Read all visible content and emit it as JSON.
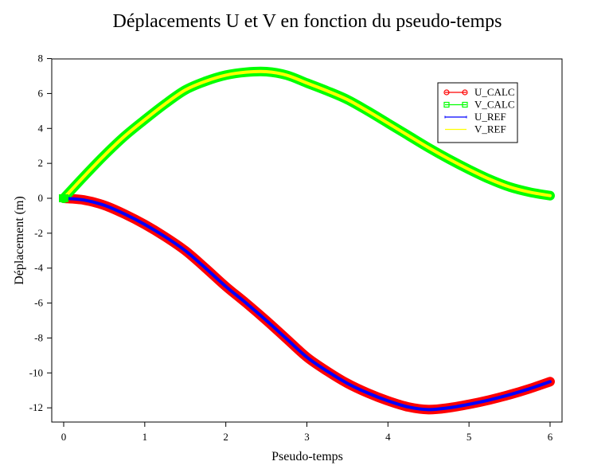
{
  "chart_data": {
    "type": "line",
    "title": "Déplacements U et V en fonction du pseudo-temps",
    "xlabel": "Pseudo-temps",
    "ylabel": "Déplacement (m)",
    "xlim": [
      -0.15,
      6.15
    ],
    "ylim": [
      -12.75,
      8
    ],
    "xticks": [
      0,
      1,
      2,
      3,
      4,
      5,
      6
    ],
    "yticks": [
      8,
      6,
      4,
      2,
      0,
      -2,
      -4,
      -6,
      -8,
      -10,
      -12
    ],
    "xtick_labels": [
      "0",
      "1",
      "2",
      "3",
      "4",
      "5",
      "6"
    ],
    "ytick_labels": [
      "8",
      "6",
      "4",
      "2",
      "0",
      "-2",
      "-4",
      "-6",
      "-8",
      "-10",
      "-12"
    ],
    "grid": false,
    "legend_position": "top-right",
    "x": [
      0,
      0.25,
      0.5,
      0.75,
      1,
      1.25,
      1.5,
      1.75,
      2,
      2.25,
      2.5,
      2.75,
      3,
      3.25,
      3.5,
      3.75,
      4,
      4.25,
      4.5,
      4.75,
      5,
      5.25,
      5.5,
      5.75,
      6
    ],
    "series": [
      {
        "name": "U_CALC",
        "color": "#ff0000",
        "marker": "circle",
        "values": [
          0,
          -0.1,
          -0.4,
          -0.9,
          -1.5,
          -2.2,
          -3.0,
          -4.0,
          -5.05,
          -6.0,
          -7.0,
          -8.05,
          -9.1,
          -9.9,
          -10.6,
          -11.15,
          -11.6,
          -11.95,
          -12.1,
          -12.0,
          -11.8,
          -11.55,
          -11.25,
          -10.9,
          -10.5
        ]
      },
      {
        "name": "V_CALC",
        "color": "#00ff00",
        "marker": "square",
        "values": [
          0,
          1.25,
          2.45,
          3.55,
          4.5,
          5.4,
          6.2,
          6.7,
          7.05,
          7.22,
          7.25,
          7.05,
          6.6,
          6.15,
          5.65,
          5.0,
          4.3,
          3.6,
          2.9,
          2.25,
          1.65,
          1.1,
          0.65,
          0.35,
          0.15
        ]
      },
      {
        "name": "U_REF",
        "color": "#0000ff",
        "marker": "none",
        "values": [
          0,
          -0.1,
          -0.4,
          -0.9,
          -1.5,
          -2.2,
          -3.0,
          -4.0,
          -5.05,
          -6.0,
          -7.0,
          -8.05,
          -9.1,
          -9.9,
          -10.6,
          -11.15,
          -11.6,
          -11.95,
          -12.1,
          -12.0,
          -11.8,
          -11.55,
          -11.25,
          -10.9,
          -10.5
        ]
      },
      {
        "name": "V_REF",
        "color": "#ffff00",
        "marker": "none",
        "values": [
          0,
          1.25,
          2.45,
          3.55,
          4.5,
          5.4,
          6.2,
          6.7,
          7.05,
          7.22,
          7.25,
          7.05,
          6.6,
          6.15,
          5.65,
          5.0,
          4.3,
          3.6,
          2.9,
          2.25,
          1.65,
          1.1,
          0.65,
          0.35,
          0.15
        ]
      }
    ]
  }
}
